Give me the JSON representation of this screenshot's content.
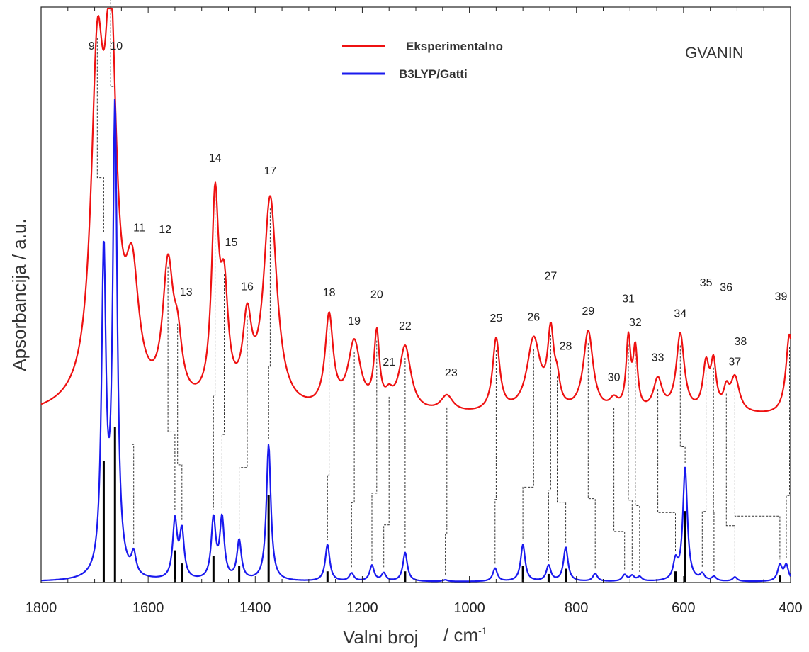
{
  "chart_data": {
    "type": "line",
    "title": "GVANIN",
    "xlabel": "Valni broj",
    "xunit": "/ cm",
    "xunit_sup": "-1",
    "ylabel": "Apsorbancija / a.u.",
    "xlim": [
      1800,
      400
    ],
    "x_reversed": true,
    "xticks": [
      1800,
      1600,
      1400,
      1200,
      1000,
      800,
      600,
      400
    ],
    "xtick_labels": [
      "1800",
      "1600",
      "1400",
      "1200",
      "1000",
      "800",
      "600",
      "400"
    ],
    "grid": false,
    "legend_position": "top-center",
    "colors": {
      "experimental": "#ee1111",
      "calculated": "#1a1aee",
      "sticks": "#000000",
      "assignment": "#333333"
    },
    "series": [
      {
        "name": "Eksperimentalno",
        "peaks": [
          {
            "x": 1695,
            "h": 0.575,
            "w": 14
          },
          {
            "x": 1670,
            "h": 0.635,
            "w": 13
          },
          {
            "x": 1630,
            "h": 0.215,
            "w": 15
          },
          {
            "x": 1563,
            "h": 0.245,
            "w": 12
          },
          {
            "x": 1545,
            "h": 0.09,
            "w": 10
          },
          {
            "x": 1475,
            "h": 0.365,
            "w": 8
          },
          {
            "x": 1458,
            "h": 0.19,
            "w": 9
          },
          {
            "x": 1415,
            "h": 0.145,
            "w": 10
          },
          {
            "x": 1372,
            "h": 0.39,
            "w": 15
          },
          {
            "x": 1262,
            "h": 0.17,
            "w": 9
          },
          {
            "x": 1215,
            "h": 0.125,
            "w": 14
          },
          {
            "x": 1173,
            "h": 0.135,
            "w": 6
          },
          {
            "x": 1150,
            "h": 0.02,
            "w": 8
          },
          {
            "x": 1120,
            "h": 0.12,
            "w": 13
          },
          {
            "x": 1042,
            "h": 0.03,
            "w": 14
          },
          {
            "x": 950,
            "h": 0.135,
            "w": 8
          },
          {
            "x": 880,
            "h": 0.135,
            "w": 15
          },
          {
            "x": 848,
            "h": 0.135,
            "w": 7
          },
          {
            "x": 836,
            "h": 0.04,
            "w": 6
          },
          {
            "x": 778,
            "h": 0.15,
            "w": 11
          },
          {
            "x": 730,
            "h": 0.02,
            "w": 10
          },
          {
            "x": 703,
            "h": 0.13,
            "w": 5
          },
          {
            "x": 690,
            "h": 0.11,
            "w": 5
          },
          {
            "x": 648,
            "h": 0.06,
            "w": 10
          },
          {
            "x": 606,
            "h": 0.145,
            "w": 9
          },
          {
            "x": 558,
            "h": 0.085,
            "w": 7
          },
          {
            "x": 544,
            "h": 0.085,
            "w": 6
          },
          {
            "x": 520,
            "h": 0.035,
            "w": 6
          },
          {
            "x": 504,
            "h": 0.065,
            "w": 10
          },
          {
            "x": 402,
            "h": 0.15,
            "w": 8
          }
        ]
      },
      {
        "name": "B3LYP/Gatti",
        "peaks": [
          {
            "x": 1683,
            "h": 0.61,
            "w": 5
          },
          {
            "x": 1662,
            "h": 0.89,
            "w": 5
          },
          {
            "x": 1627,
            "h": 0.04,
            "w": 5
          },
          {
            "x": 1550,
            "h": 0.11,
            "w": 5
          },
          {
            "x": 1537,
            "h": 0.09,
            "w": 5
          },
          {
            "x": 1478,
            "h": 0.115,
            "w": 5
          },
          {
            "x": 1462,
            "h": 0.115,
            "w": 5
          },
          {
            "x": 1430,
            "h": 0.075,
            "w": 5
          },
          {
            "x": 1375,
            "h": 0.26,
            "w": 5
          },
          {
            "x": 1265,
            "h": 0.07,
            "w": 5
          },
          {
            "x": 1220,
            "h": 0.015,
            "w": 5
          },
          {
            "x": 1182,
            "h": 0.03,
            "w": 5
          },
          {
            "x": 1160,
            "h": 0.015,
            "w": 5
          },
          {
            "x": 1120,
            "h": 0.055,
            "w": 5
          },
          {
            "x": 1045,
            "h": 0.003,
            "w": 5
          },
          {
            "x": 952,
            "h": 0.025,
            "w": 5
          },
          {
            "x": 900,
            "h": 0.07,
            "w": 5
          },
          {
            "x": 852,
            "h": 0.03,
            "w": 5
          },
          {
            "x": 820,
            "h": 0.065,
            "w": 5
          },
          {
            "x": 765,
            "h": 0.015,
            "w": 5
          },
          {
            "x": 710,
            "h": 0.012,
            "w": 5
          },
          {
            "x": 696,
            "h": 0.01,
            "w": 5
          },
          {
            "x": 682,
            "h": 0.008,
            "w": 5
          },
          {
            "x": 615,
            "h": 0.035,
            "w": 5
          },
          {
            "x": 597,
            "h": 0.215,
            "w": 5
          },
          {
            "x": 565,
            "h": 0.012,
            "w": 5
          },
          {
            "x": 543,
            "h": 0.008,
            "w": 5
          },
          {
            "x": 504,
            "h": 0.008,
            "w": 5
          },
          {
            "x": 420,
            "h": 0.03,
            "w": 5
          },
          {
            "x": 408,
            "h": 0.03,
            "w": 5
          }
        ]
      }
    ],
    "sticks": [
      {
        "x": 1683,
        "h": 0.23
      },
      {
        "x": 1662,
        "h": 0.295
      },
      {
        "x": 1550,
        "h": 0.06
      },
      {
        "x": 1537,
        "h": 0.035
      },
      {
        "x": 1478,
        "h": 0.05
      },
      {
        "x": 1430,
        "h": 0.03
      },
      {
        "x": 1375,
        "h": 0.165
      },
      {
        "x": 1265,
        "h": 0.02
      },
      {
        "x": 1120,
        "h": 0.02
      },
      {
        "x": 900,
        "h": 0.03
      },
      {
        "x": 852,
        "h": 0.015
      },
      {
        "x": 820,
        "h": 0.025
      },
      {
        "x": 615,
        "h": 0.02
      },
      {
        "x": 597,
        "h": 0.135
      },
      {
        "x": 420,
        "h": 0.012
      }
    ],
    "peak_labels": [
      "9",
      "10",
      "11",
      "12",
      "13",
      "14",
      "15",
      "16",
      "17",
      "18",
      "19",
      "20",
      "21",
      "22",
      "23",
      "25",
      "26",
      "27",
      "28",
      "29",
      "30",
      "31",
      "32",
      "33",
      "34",
      "35",
      "36",
      "37",
      "38",
      "39"
    ]
  }
}
